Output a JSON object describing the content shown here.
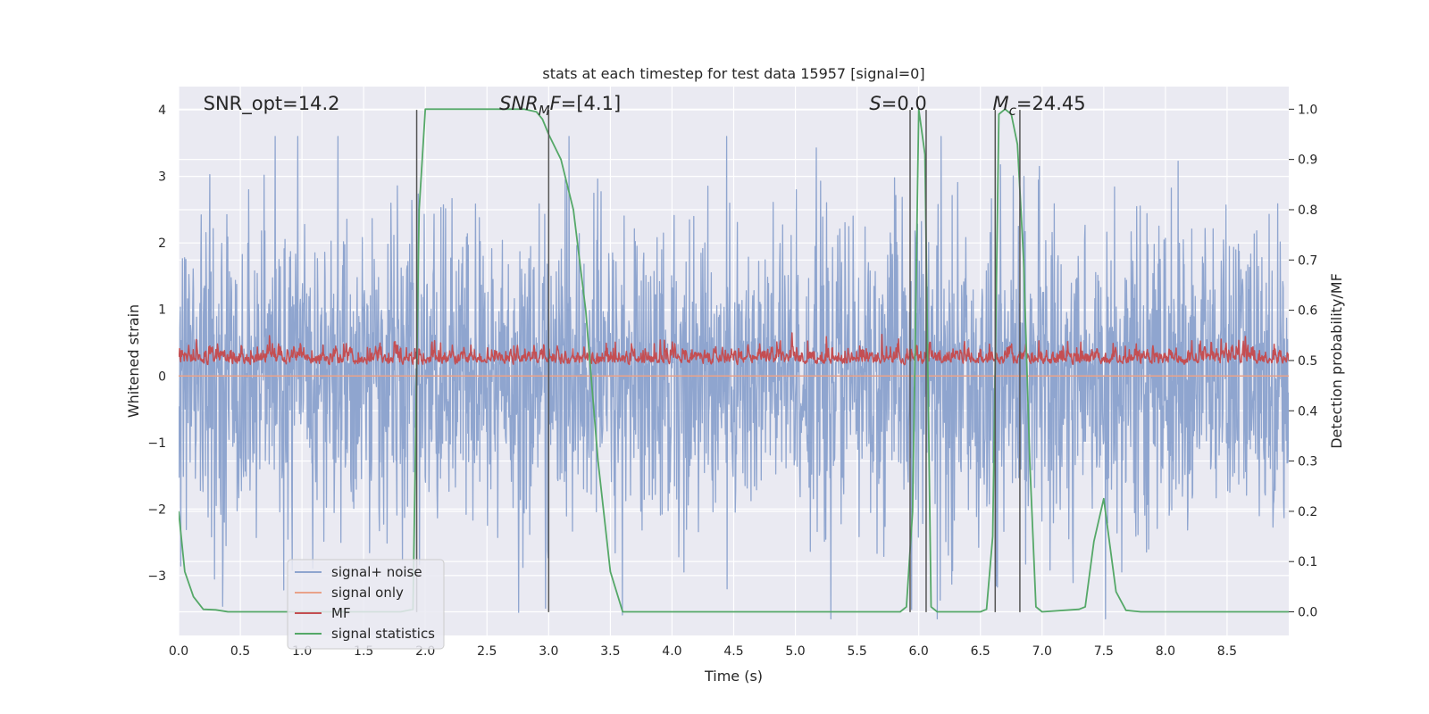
{
  "chart_data": {
    "type": "line",
    "title": "stats at each timestep for test data 15957 [signal=0]",
    "xlabel": "Time (s)",
    "ylabel_left": "Whitened strain",
    "ylabel_right": "Detection probability/MF",
    "xlim": [
      0.0,
      9.0
    ],
    "ylim_left": [
      -3.9,
      4.35
    ],
    "ylim_right": [
      -0.047,
      1.045
    ],
    "x_ticks": [
      0.0,
      0.5,
      1.0,
      1.5,
      2.0,
      2.5,
      3.0,
      3.5,
      4.0,
      4.5,
      5.0,
      5.5,
      6.0,
      6.5,
      7.0,
      7.5,
      8.0,
      8.5
    ],
    "x_tick_labels": [
      "0.0",
      "0.5",
      "1.0",
      "1.5",
      "2.0",
      "2.5",
      "3.0",
      "3.5",
      "4.0",
      "4.5",
      "5.0",
      "5.5",
      "6.0",
      "6.5",
      "7.0",
      "7.5",
      "8.0",
      "8.5"
    ],
    "y_left_ticks": [
      -3,
      -2,
      -1,
      0,
      1,
      2,
      3,
      4
    ],
    "y_left_tick_labels": [
      "−3",
      "−2",
      "−1",
      "0",
      "1",
      "2",
      "3",
      "4"
    ],
    "y_right_ticks": [
      0.0,
      0.1,
      0.2,
      0.3,
      0.4,
      0.5,
      0.6,
      0.7,
      0.8,
      0.9,
      1.0
    ],
    "y_right_tick_labels": [
      "0.0",
      "0.1",
      "0.2",
      "0.3",
      "0.4",
      "0.5",
      "0.6",
      "0.7",
      "0.8",
      "0.9",
      "1.0"
    ],
    "grid": true,
    "legend_position": "lower-left",
    "annotations": [
      {
        "text": "SNR_opt=14.2",
        "x": 0.2,
        "y": 4.0
      },
      {
        "text": "SNR_MF=[4.1]",
        "x": 2.6,
        "y": 4.0
      },
      {
        "text": "S=0.0",
        "x": 5.6,
        "y": 4.0
      },
      {
        "text": "M_c=24.45",
        "x": 6.6,
        "y": 4.0
      }
    ],
    "vertical_lines": [
      1.93,
      3.0,
      5.93,
      6.06,
      6.62,
      6.82
    ],
    "series": [
      {
        "name": "signal+ noise",
        "axis": "left",
        "color": "#8fa5cf",
        "style": "noise",
        "amplitude_std": 1.0,
        "extremes_range": [
          -3.65,
          3.6
        ]
      },
      {
        "name": "signal only",
        "axis": "left",
        "color": "#e9a28a",
        "x": [
          0.0,
          9.0
        ],
        "y": [
          0.0,
          0.0
        ]
      },
      {
        "name": "MF",
        "axis": "right",
        "color": "#c44e52",
        "style": "noise",
        "baseline": 0.49,
        "amplitude_range": [
          0.47,
          0.56
        ]
      },
      {
        "name": "signal statistics",
        "axis": "right",
        "color": "#55a868",
        "x": [
          0.0,
          0.05,
          0.12,
          0.2,
          0.3,
          0.4,
          0.5,
          1.8,
          1.9,
          1.95,
          2.0,
          2.8,
          2.9,
          2.95,
          3.0,
          3.1,
          3.2,
          3.3,
          3.4,
          3.5,
          3.6,
          5.85,
          5.9,
          5.95,
          6.0,
          6.05,
          6.1,
          6.15,
          6.2,
          6.5,
          6.55,
          6.6,
          6.65,
          6.7,
          6.75,
          6.8,
          6.85,
          6.9,
          6.95,
          7.0,
          7.3,
          7.35,
          7.42,
          7.5,
          7.6,
          7.68,
          7.8,
          9.0
        ],
        "y": [
          0.2,
          0.08,
          0.03,
          0.005,
          0.004,
          0.0,
          0.0,
          0.0,
          0.005,
          0.8,
          1.0,
          1.0,
          0.995,
          0.98,
          0.95,
          0.9,
          0.8,
          0.6,
          0.3,
          0.08,
          0.0,
          0.0,
          0.01,
          0.2,
          1.0,
          0.91,
          0.01,
          0.0,
          0.0,
          0.0,
          0.005,
          0.15,
          0.99,
          1.0,
          0.99,
          0.93,
          0.7,
          0.3,
          0.01,
          0.0,
          0.005,
          0.01,
          0.14,
          0.225,
          0.04,
          0.003,
          0.0,
          0.0
        ]
      }
    ],
    "legend": [
      "signal+ noise",
      "signal only",
      "MF",
      "signal statistics"
    ]
  }
}
